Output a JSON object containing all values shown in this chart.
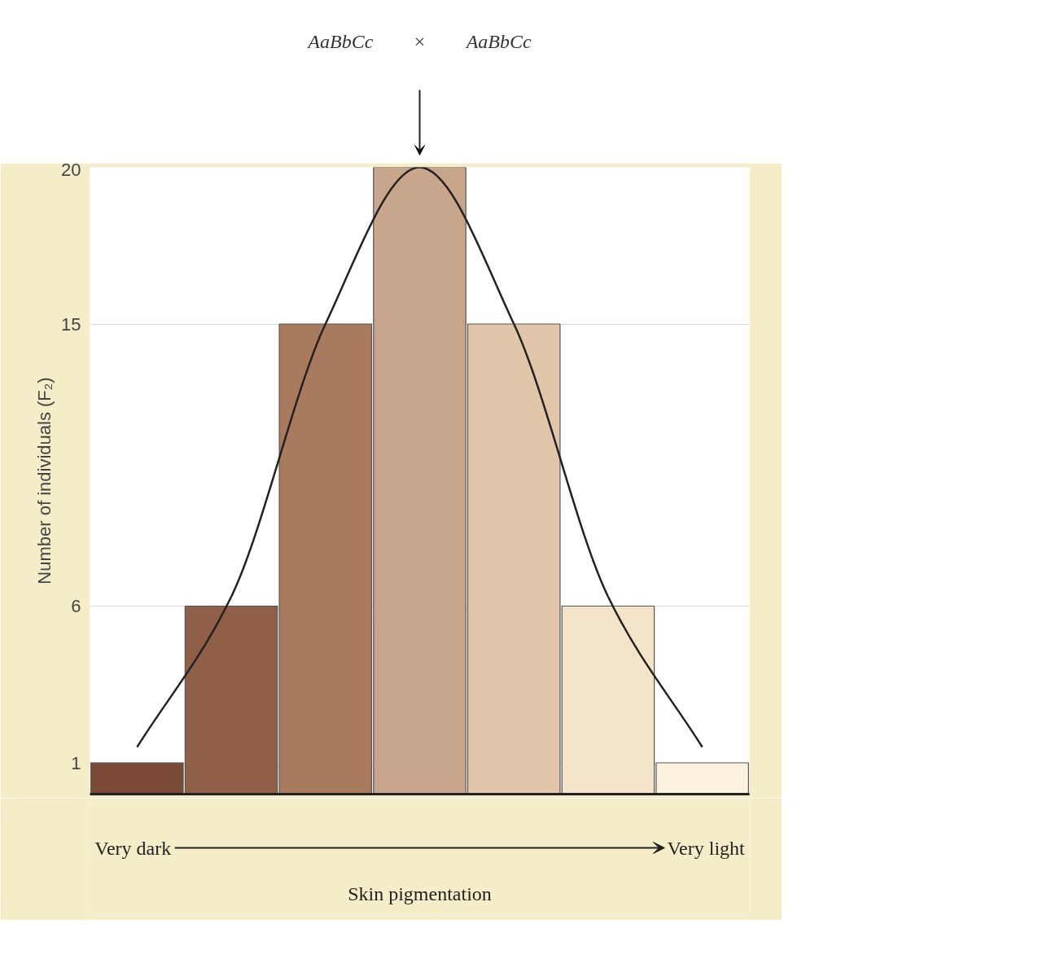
{
  "chart_data": {
    "type": "bar",
    "categories": [
      null,
      null,
      null,
      null,
      null,
      null,
      null
    ],
    "series": [
      {
        "values": [
          1,
          6,
          15,
          20,
          15,
          6,
          1
        ],
        "colors": [
          "#7a4a36",
          "#8f5f47",
          "#a87a5e",
          "#c8a68b",
          "#e2c6a9",
          "#f3e3c8",
          "#fbf2df"
        ]
      },
      {
        "type": "line",
        "color": "#222222",
        "values": [
          1.5,
          6.3,
          15,
          20,
          15,
          6.3,
          1.5
        ]
      }
    ],
    "ylim": [
      0,
      20
    ],
    "yticks": [
      1,
      6,
      15,
      20
    ],
    "grid": "y",
    "tick_labels": "y",
    "xlabel": "Skin pigmentation",
    "ylabel": "Number of individuals (F₂)",
    "annotations": [
      "AaBbCc",
      "×",
      "AaBbCc",
      "Very dark",
      "Very light"
    ]
  }
}
